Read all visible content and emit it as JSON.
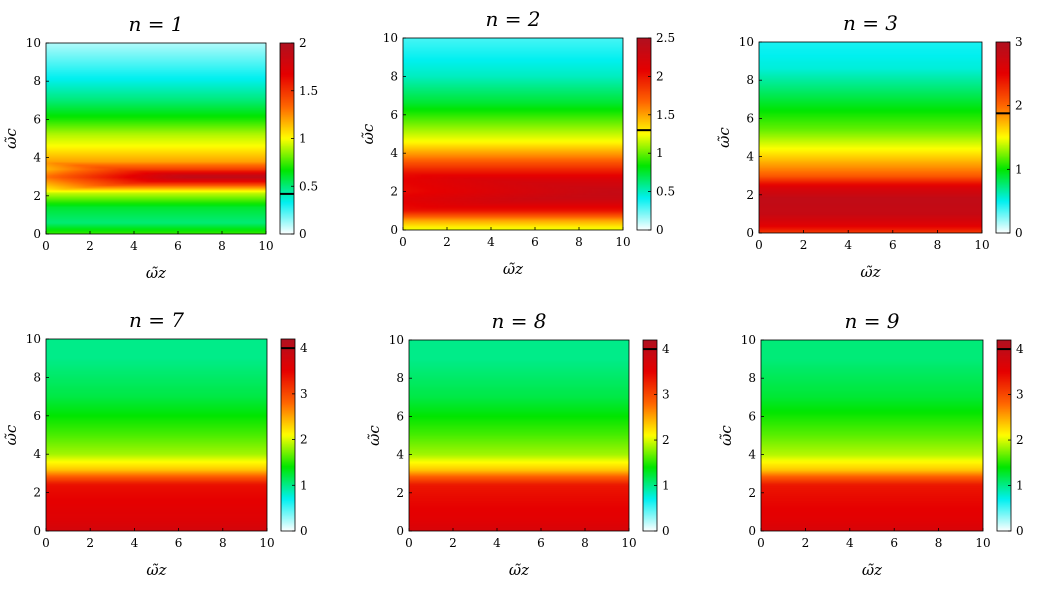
{
  "colors": {
    "colormap": [
      "#ffffff",
      "#00f0f0",
      "#00e600",
      "#ffff00",
      "#ff6600",
      "#e60000",
      "#b01020"
    ],
    "marker": "#000000"
  },
  "chart_data": [
    {
      "type": "heatmap",
      "title": "n = 1",
      "xlabel": "ω̃z",
      "ylabel": "ω̃c",
      "xlim": [
        0,
        10
      ],
      "ylim": [
        0,
        10
      ],
      "clim": [
        0,
        2
      ],
      "xticks": [
        "0",
        "2",
        "4",
        "6",
        "8",
        "10"
      ],
      "yticks": [
        "0",
        "2",
        "4",
        "6",
        "8",
        "10"
      ],
      "cticks": [
        "0",
        "0.5",
        "1",
        "1.5",
        "2"
      ],
      "cticks_values": [
        0,
        0.5,
        1,
        1.5,
        2
      ],
      "colorbar_marker": 0.42,
      "profile": {
        "y": [
          0,
          0.6,
          1.4,
          2.2,
          2.6,
          3.0,
          3.4,
          3.8,
          4.6,
          5.2,
          6.0,
          7.0,
          8.0,
          10
        ],
        "v": [
          0.75,
          0.5,
          0.6,
          0.95,
          1.45,
          1.95,
          1.45,
          1.2,
          1.0,
          0.9,
          0.7,
          0.5,
          0.35,
          0.1
        ]
      },
      "split": [
        {
          "center": 3.0,
          "width0": 0.7,
          "x_end": 6.5,
          "amp": 0.7
        }
      ]
    },
    {
      "type": "heatmap",
      "title": "n = 2",
      "xlabel": "ω̃z",
      "ylabel": "ω̃c",
      "xlim": [
        0,
        10
      ],
      "ylim": [
        0,
        10
      ],
      "clim": [
        0,
        2.5
      ],
      "xticks": [
        "0",
        "2",
        "4",
        "6",
        "8",
        "10"
      ],
      "yticks": [
        "0",
        "2",
        "4",
        "6",
        "8",
        "10"
      ],
      "cticks": [
        "0",
        "0.5",
        "1",
        "1.5",
        "2",
        "2.5"
      ],
      "cticks_values": [
        0,
        0.5,
        1,
        1.5,
        2,
        2.5
      ],
      "colorbar_marker": 1.3,
      "profile": {
        "y": [
          0,
          0.5,
          1.0,
          1.6,
          2.0,
          2.6,
          3.2,
          3.8,
          4.6,
          5.6,
          6.6,
          8.0,
          10
        ],
        "v": [
          1.2,
          1.5,
          2.0,
          2.3,
          2.35,
          2.2,
          1.9,
          1.6,
          1.25,
          1.0,
          0.75,
          0.5,
          0.3
        ]
      },
      "split": [
        {
          "center": 2.0,
          "width0": 0.9,
          "x_end": 10,
          "amp": 0.35
        }
      ]
    },
    {
      "type": "heatmap",
      "title": "n = 3",
      "xlabel": "ω̃z",
      "ylabel": "ω̃c",
      "xlim": [
        0,
        10
      ],
      "ylim": [
        0,
        10
      ],
      "clim": [
        0,
        3
      ],
      "xticks": [
        "0",
        "2",
        "4",
        "6",
        "8",
        "10"
      ],
      "yticks": [
        "0",
        "2",
        "4",
        "6",
        "8",
        "10"
      ],
      "cticks": [
        "0",
        "1",
        "2",
        "3"
      ],
      "cticks_values": [
        0,
        1,
        2,
        3
      ],
      "colorbar_marker": 1.88,
      "profile": {
        "y": [
          0,
          0.4,
          1.0,
          1.8,
          2.4,
          3.0,
          3.6,
          4.4,
          5.4,
          6.4,
          7.6,
          8.6,
          10
        ],
        "v": [
          2.2,
          2.55,
          2.8,
          2.85,
          2.6,
          2.05,
          1.8,
          1.5,
          1.2,
          1.0,
          0.75,
          0.55,
          0.45
        ]
      },
      "split": []
    },
    {
      "type": "heatmap",
      "title": "n = 7",
      "xlabel": "ω̃z",
      "ylabel": "ω̃c",
      "xlim": [
        0,
        10
      ],
      "ylim": [
        0,
        10
      ],
      "clim": [
        0,
        4.2
      ],
      "xticks": [
        "0",
        "2",
        "4",
        "6",
        "8",
        "10"
      ],
      "yticks": [
        "0",
        "2",
        "4",
        "6",
        "8",
        "10"
      ],
      "cticks": [
        "0",
        "1",
        "2",
        "3",
        "4"
      ],
      "cticks_values": [
        0,
        1,
        2,
        3,
        4
      ],
      "colorbar_marker": 4.0,
      "profile": {
        "y": [
          0,
          0.6,
          1.6,
          2.4,
          2.8,
          3.2,
          4.0,
          5.0,
          6.0,
          7.0,
          8.0,
          9.0,
          10
        ],
        "v": [
          3.75,
          3.6,
          3.5,
          3.4,
          2.9,
          2.35,
          1.85,
          1.6,
          1.4,
          1.2,
          1.1,
          1.0,
          1.0
        ]
      },
      "split": []
    },
    {
      "type": "heatmap",
      "title": "n = 8",
      "xlabel": "ω̃z",
      "ylabel": "ω̃c",
      "xlim": [
        0,
        10
      ],
      "ylim": [
        0,
        10
      ],
      "clim": [
        0,
        4.2
      ],
      "xticks": [
        "0",
        "2",
        "4",
        "6",
        "8",
        "10"
      ],
      "yticks": [
        "0",
        "2",
        "4",
        "6",
        "8",
        "10"
      ],
      "cticks": [
        "0",
        "1",
        "2",
        "3",
        "4"
      ],
      "cticks_values": [
        0,
        1,
        2,
        3,
        4
      ],
      "colorbar_marker": 4.0,
      "profile": {
        "y": [
          0,
          0.6,
          1.6,
          2.4,
          2.8,
          3.2,
          4.0,
          5.0,
          6.0,
          7.0,
          8.0,
          9.0,
          10
        ],
        "v": [
          3.7,
          3.55,
          3.45,
          3.35,
          2.9,
          2.35,
          1.85,
          1.6,
          1.4,
          1.2,
          1.1,
          1.0,
          1.0
        ]
      },
      "split": []
    },
    {
      "type": "heatmap",
      "title": "n = 9",
      "xlabel": "ω̃z",
      "ylabel": "ω̃c",
      "xlim": [
        0,
        10
      ],
      "ylim": [
        0,
        10
      ],
      "clim": [
        0,
        4.2
      ],
      "xticks": [
        "0",
        "2",
        "4",
        "6",
        "8",
        "10"
      ],
      "yticks": [
        "0",
        "2",
        "4",
        "6",
        "8",
        "10"
      ],
      "cticks": [
        "0",
        "1",
        "2",
        "3",
        "4"
      ],
      "cticks_values": [
        0,
        1,
        2,
        3,
        4
      ],
      "colorbar_marker": 4.0,
      "profile": {
        "y": [
          0,
          0.6,
          1.6,
          2.4,
          2.8,
          3.2,
          4.0,
          5.0,
          6.0,
          7.0,
          8.0,
          9.0,
          10
        ],
        "v": [
          3.7,
          3.55,
          3.45,
          3.35,
          2.9,
          2.35,
          1.9,
          1.65,
          1.45,
          1.25,
          1.15,
          1.05,
          1.05
        ]
      },
      "split": []
    }
  ]
}
